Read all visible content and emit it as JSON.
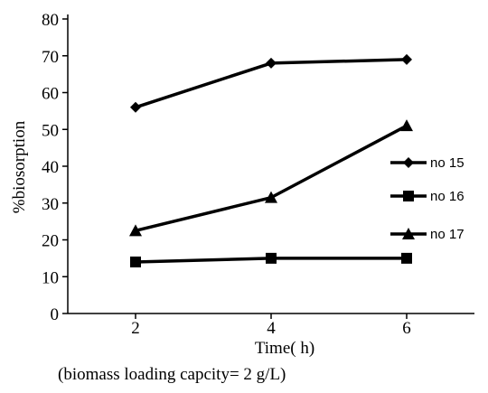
{
  "chart_data": {
    "type": "line",
    "x": [
      2,
      4,
      6
    ],
    "xlabel": "Time( h)",
    "ylabel": "%biosorption",
    "caption": "(biomass loading capcity= 2 g/L)",
    "xlim": [
      1,
      7
    ],
    "ylim": [
      0,
      80
    ],
    "xticks": [
      2,
      4,
      6
    ],
    "yticks": [
      0,
      10,
      20,
      30,
      40,
      50,
      60,
      70,
      80
    ],
    "grid": false,
    "legend_position": "right",
    "series": [
      {
        "name": "no 15",
        "marker": "diamond",
        "values": [
          56,
          68,
          69
        ]
      },
      {
        "name": "no 16",
        "marker": "square",
        "values": [
          14,
          15,
          15
        ]
      },
      {
        "name": "no 17",
        "marker": "triangle",
        "values": [
          22.5,
          31.5,
          51
        ]
      }
    ],
    "colors": {
      "line": "#000000"
    }
  }
}
